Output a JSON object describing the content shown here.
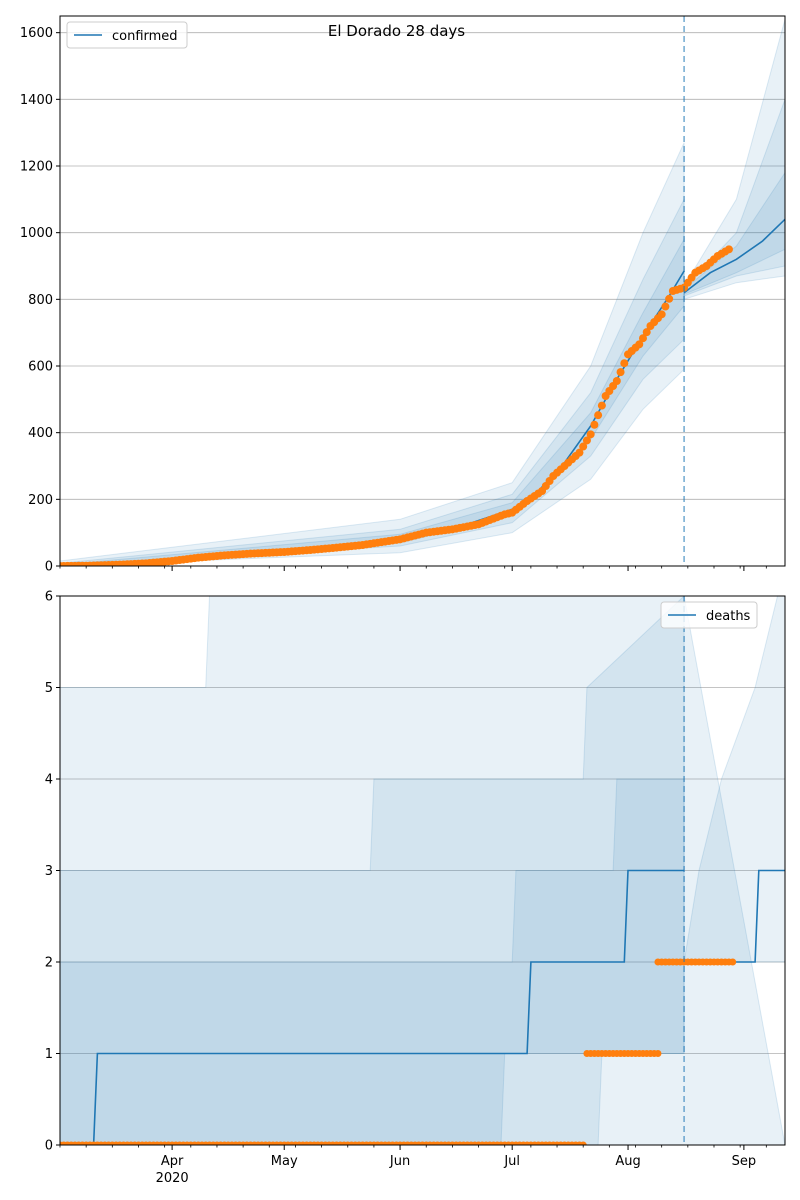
{
  "chart_data": [
    {
      "type": "line",
      "title": "El Dorado 28 days",
      "x_axis": {
        "type": "date",
        "range": [
          "2020-03-02",
          "2020-09-12"
        ],
        "tick_labels": [
          {
            "date": "2020-04-01",
            "label": "Apr",
            "sublabel": "2020"
          },
          {
            "date": "2020-05-01",
            "label": "May"
          },
          {
            "date": "2020-06-01",
            "label": "Jun"
          },
          {
            "date": "2020-07-01",
            "label": "Jul"
          },
          {
            "date": "2020-08-01",
            "label": "Aug"
          },
          {
            "date": "2020-09-01",
            "label": "Sep"
          }
        ],
        "tick_labels_shown": false
      },
      "ylim": [
        0,
        1650
      ],
      "yticks": [
        0,
        200,
        400,
        600,
        800,
        1000,
        1200,
        1400,
        1600
      ],
      "grid": "horizontal",
      "legend": {
        "placement": "top-left",
        "entries": [
          "confirmed"
        ]
      },
      "forecast_start": "2020-08-16",
      "series": [
        {
          "name": "confirmed",
          "kind": "model-median",
          "color": "#1f77b4",
          "points": [
            [
              "2020-03-02",
              0
            ],
            [
              "2020-03-15",
              3
            ],
            [
              "2020-04-01",
              18
            ],
            [
              "2020-04-15",
              30
            ],
            [
              "2020-05-01",
              42
            ],
            [
              "2020-05-15",
              58
            ],
            [
              "2020-06-01",
              80
            ],
            [
              "2020-06-15",
              110
            ],
            [
              "2020-07-01",
              170
            ],
            [
              "2020-07-08",
              225
            ],
            [
              "2020-07-15",
              310
            ],
            [
              "2020-07-22",
              420
            ],
            [
              "2020-07-29",
              560
            ],
            [
              "2020-08-05",
              690
            ],
            [
              "2020-08-12",
              810
            ],
            [
              "2020-08-16",
              885
            ]
          ]
        },
        {
          "name": "projection",
          "kind": "forecast-median",
          "color": "#1f77b4",
          "points": [
            [
              "2020-08-16",
              820
            ],
            [
              "2020-08-23",
              880
            ],
            [
              "2020-08-30",
              920
            ],
            [
              "2020-09-06",
              975
            ],
            [
              "2020-09-12",
              1040
            ]
          ]
        },
        {
          "name": "observed",
          "kind": "observed",
          "color": "#ff7f0e",
          "points": [
            [
              "2020-03-02",
              0
            ],
            [
              "2020-03-10",
              1
            ],
            [
              "2020-03-18",
              4
            ],
            [
              "2020-03-25",
              8
            ],
            [
              "2020-04-01",
              15
            ],
            [
              "2020-04-08",
              25
            ],
            [
              "2020-04-15",
              32
            ],
            [
              "2020-04-22",
              37
            ],
            [
              "2020-05-01",
              42
            ],
            [
              "2020-05-08",
              48
            ],
            [
              "2020-05-15",
              55
            ],
            [
              "2020-05-22",
              63
            ],
            [
              "2020-06-01",
              80
            ],
            [
              "2020-06-08",
              100
            ],
            [
              "2020-06-15",
              110
            ],
            [
              "2020-06-22",
              125
            ],
            [
              "2020-06-29",
              155
            ],
            [
              "2020-07-01",
              160
            ],
            [
              "2020-07-05",
              195
            ],
            [
              "2020-07-09",
              225
            ],
            [
              "2020-07-12",
              270
            ],
            [
              "2020-07-15",
              300
            ],
            [
              "2020-07-19",
              340
            ],
            [
              "2020-07-22",
              395
            ],
            [
              "2020-07-26",
              510
            ],
            [
              "2020-07-29",
              555
            ],
            [
              "2020-08-01",
              635
            ],
            [
              "2020-08-04",
              665
            ],
            [
              "2020-08-07",
              720
            ],
            [
              "2020-08-10",
              755
            ],
            [
              "2020-08-13",
              825
            ],
            [
              "2020-08-16",
              835
            ],
            [
              "2020-08-19",
              880
            ],
            [
              "2020-08-22",
              900
            ],
            [
              "2020-08-25",
              930
            ],
            [
              "2020-08-28",
              950
            ]
          ]
        }
      ],
      "bands": [
        {
          "kind": "95%",
          "color": "#1f77b4",
          "opacity": 0.1,
          "lower": [
            [
              "2020-03-02",
              0
            ],
            [
              "2020-06-01",
              40
            ],
            [
              "2020-07-01",
              100
            ],
            [
              "2020-07-22",
              260
            ],
            [
              "2020-08-05",
              470
            ],
            [
              "2020-08-16",
              590
            ]
          ],
          "upper": [
            [
              "2020-03-02",
              15
            ],
            [
              "2020-06-01",
              140
            ],
            [
              "2020-07-01",
              250
            ],
            [
              "2020-07-22",
              600
            ],
            [
              "2020-08-05",
              1000
            ],
            [
              "2020-08-16",
              1270
            ]
          ]
        },
        {
          "kind": "80%",
          "color": "#1f77b4",
          "opacity": 0.1,
          "lower": [
            [
              "2020-03-02",
              0
            ],
            [
              "2020-06-01",
              60
            ],
            [
              "2020-07-01",
              130
            ],
            [
              "2020-07-22",
              330
            ],
            [
              "2020-08-05",
              560
            ],
            [
              "2020-08-16",
              680
            ]
          ],
          "upper": [
            [
              "2020-03-02",
              8
            ],
            [
              "2020-06-01",
              110
            ],
            [
              "2020-07-01",
              215
            ],
            [
              "2020-07-22",
              520
            ],
            [
              "2020-08-05",
              860
            ],
            [
              "2020-08-16",
              1100
            ]
          ]
        },
        {
          "kind": "50%",
          "color": "#1f77b4",
          "opacity": 0.1,
          "lower": [
            [
              "2020-03-02",
              0
            ],
            [
              "2020-06-01",
              70
            ],
            [
              "2020-07-01",
              150
            ],
            [
              "2020-07-22",
              380
            ],
            [
              "2020-08-05",
              630
            ],
            [
              "2020-08-16",
              780
            ]
          ],
          "upper": [
            [
              "2020-03-02",
              4
            ],
            [
              "2020-06-01",
              95
            ],
            [
              "2020-07-01",
              190
            ],
            [
              "2020-07-22",
              460
            ],
            [
              "2020-08-05",
              760
            ],
            [
              "2020-08-16",
              980
            ]
          ]
        },
        {
          "kind": "forecast-95%",
          "color": "#1f77b4",
          "opacity": 0.1,
          "lower": [
            [
              "2020-08-16",
              800
            ],
            [
              "2020-08-30",
              850
            ],
            [
              "2020-09-12",
              870
            ]
          ],
          "upper": [
            [
              "2020-08-16",
              840
            ],
            [
              "2020-08-30",
              1100
            ],
            [
              "2020-09-12",
              1640
            ]
          ]
        },
        {
          "kind": "forecast-80%",
          "color": "#1f77b4",
          "opacity": 0.1,
          "lower": [
            [
              "2020-08-16",
              810
            ],
            [
              "2020-08-30",
              870
            ],
            [
              "2020-09-12",
              900
            ]
          ],
          "upper": [
            [
              "2020-08-16",
              835
            ],
            [
              "2020-08-30",
              1000
            ],
            [
              "2020-09-12",
              1400
            ]
          ]
        },
        {
          "kind": "forecast-50%",
          "color": "#1f77b4",
          "opacity": 0.1,
          "lower": [
            [
              "2020-08-16",
              815
            ],
            [
              "2020-08-30",
              880
            ],
            [
              "2020-09-12",
              950
            ]
          ],
          "upper": [
            [
              "2020-08-16",
              830
            ],
            [
              "2020-08-30",
              960
            ],
            [
              "2020-09-12",
              1180
            ]
          ]
        }
      ]
    },
    {
      "type": "line",
      "title": "",
      "x_axis": {
        "type": "date",
        "range": [
          "2020-03-02",
          "2020-09-12"
        ],
        "tick_labels": [
          {
            "date": "2020-04-01",
            "label": "Apr",
            "sublabel": "2020"
          },
          {
            "date": "2020-05-01",
            "label": "May"
          },
          {
            "date": "2020-06-01",
            "label": "Jun"
          },
          {
            "date": "2020-07-01",
            "label": "Jul"
          },
          {
            "date": "2020-08-01",
            "label": "Aug"
          },
          {
            "date": "2020-09-01",
            "label": "Sep"
          }
        ],
        "tick_labels_shown": true
      },
      "ylim": [
        0,
        6
      ],
      "yticks": [
        0,
        1,
        2,
        3,
        4,
        5,
        6
      ],
      "grid": "horizontal",
      "legend": {
        "placement": "top-right",
        "entries": [
          "deaths"
        ]
      },
      "forecast_start": "2020-08-16",
      "series": [
        {
          "name": "deaths",
          "kind": "model-median",
          "color": "#1f77b4",
          "step": true,
          "points": [
            [
              "2020-03-02",
              0
            ],
            [
              "2020-03-11",
              0
            ],
            [
              "2020-03-12",
              1
            ],
            [
              "2020-07-05",
              1
            ],
            [
              "2020-07-06",
              2
            ],
            [
              "2020-07-31",
              2
            ],
            [
              "2020-08-01",
              3
            ],
            [
              "2020-08-16",
              3
            ]
          ]
        },
        {
          "name": "projection",
          "kind": "forecast-median",
          "color": "#1f77b4",
          "step": true,
          "points": [
            [
              "2020-08-16",
              2
            ],
            [
              "2020-09-04",
              2
            ],
            [
              "2020-09-05",
              3
            ],
            [
              "2020-09-12",
              3
            ]
          ]
        },
        {
          "name": "observed",
          "kind": "observed",
          "color": "#ff7f0e",
          "ranges": [
            {
              "from": "2020-03-02",
              "to": "2020-07-20",
              "value": 0
            },
            {
              "from": "2020-07-21",
              "to": "2020-08-09",
              "value": 1
            },
            {
              "from": "2020-08-09",
              "to": "2020-08-29",
              "value": 2
            }
          ]
        }
      ],
      "bands": [
        {
          "kind": "95%",
          "color": "#1f77b4",
          "opacity": 0.1,
          "lower": [
            [
              "2020-03-02",
              0
            ],
            [
              "2020-09-12",
              0
            ]
          ],
          "upper": [
            [
              "2020-03-02",
              5
            ],
            [
              "2020-04-10",
              5
            ],
            [
              "2020-04-11",
              6
            ],
            [
              "2020-08-16",
              6
            ]
          ]
        },
        {
          "kind": "80%",
          "color": "#1f77b4",
          "opacity": 0.1,
          "lower": [
            [
              "2020-03-02",
              0
            ],
            [
              "2020-07-24",
              0
            ],
            [
              "2020-07-25",
              1
            ],
            [
              "2020-08-16",
              1
            ]
          ],
          "upper": [
            [
              "2020-03-02",
              3
            ],
            [
              "2020-05-24",
              3
            ],
            [
              "2020-05-25",
              4
            ],
            [
              "2020-07-20",
              4
            ],
            [
              "2020-07-21",
              5
            ],
            [
              "2020-08-16",
              6
            ]
          ]
        },
        {
          "kind": "50%",
          "color": "#1f77b4",
          "opacity": 0.1,
          "lower": [
            [
              "2020-03-02",
              0
            ],
            [
              "2020-06-28",
              0
            ],
            [
              "2020-06-29",
              1
            ],
            [
              "2020-08-16",
              1
            ]
          ],
          "upper": [
            [
              "2020-03-02",
              2
            ],
            [
              "2020-07-01",
              2
            ],
            [
              "2020-07-02",
              3
            ],
            [
              "2020-07-28",
              3
            ],
            [
              "2020-07-29",
              4
            ],
            [
              "2020-08-16",
              4
            ]
          ]
        },
        {
          "kind": "forecast-band",
          "color": "#1f77b4",
          "opacity": 0.1,
          "lower": [
            [
              "2020-08-16",
              2
            ],
            [
              "2020-09-12",
              2
            ]
          ],
          "upper": [
            [
              "2020-08-16",
              2
            ],
            [
              "2020-08-20",
              3
            ],
            [
              "2020-08-26",
              4
            ],
            [
              "2020-09-04",
              5
            ],
            [
              "2020-09-10",
              6
            ],
            [
              "2020-09-12",
              6
            ]
          ]
        }
      ]
    }
  ]
}
